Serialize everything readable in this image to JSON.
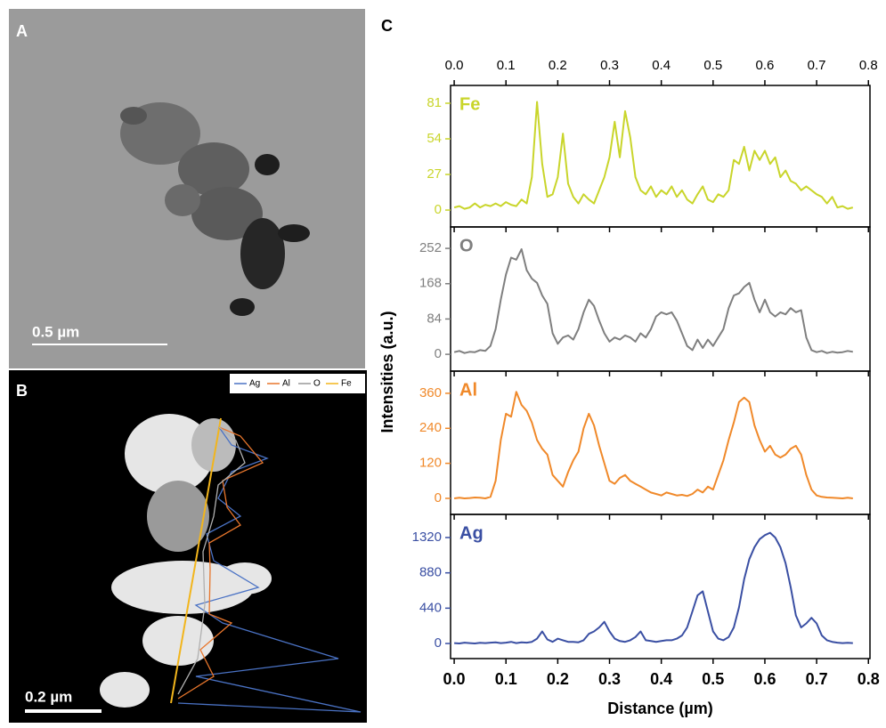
{
  "panel_labels": [
    "A",
    "B",
    "C"
  ],
  "scale_bars": [
    "0.5 µm",
    "0.2 µm"
  ],
  "y_label": "Intensities (a.u.)",
  "chart_data": [
    {
      "type": "line",
      "x": [
        0,
        0.01,
        0.02,
        0.03,
        0.04,
        0.05,
        0.06,
        0.07,
        0.08,
        0.09,
        0.1,
        0.11,
        0.12,
        0.13,
        0.14,
        0.15,
        0.16,
        0.17,
        0.18,
        0.19,
        0.2,
        0.21,
        0.22,
        0.23,
        0.24,
        0.25,
        0.26,
        0.27,
        0.28,
        0.29,
        0.3,
        0.31,
        0.32,
        0.33,
        0.34,
        0.35,
        0.36,
        0.37,
        0.38,
        0.39,
        0.4,
        0.41,
        0.42,
        0.43,
        0.44,
        0.45,
        0.46,
        0.47,
        0.48,
        0.49,
        0.5,
        0.51,
        0.52,
        0.53,
        0.54,
        0.55,
        0.56,
        0.57,
        0.58,
        0.59,
        0.6,
        0.61,
        0.62,
        0.63,
        0.64,
        0.65,
        0.66,
        0.67,
        0.68,
        0.69,
        0.7,
        0.71,
        0.72,
        0.73,
        0.74,
        0.75,
        0.76,
        0.77
      ],
      "series": [
        {
          "name": "Fe",
          "color": "#c9d52b",
          "values": [
            2,
            3,
            1,
            2,
            5,
            2,
            4,
            3,
            5,
            3,
            6,
            4,
            3,
            8,
            5,
            25,
            82,
            35,
            10,
            12,
            25,
            58,
            20,
            10,
            5,
            12,
            8,
            5,
            15,
            25,
            40,
            67,
            40,
            75,
            55,
            25,
            15,
            12,
            18,
            10,
            15,
            12,
            18,
            10,
            15,
            8,
            5,
            12,
            18,
            8,
            6,
            12,
            10,
            15,
            38,
            35,
            48,
            30,
            45,
            38,
            45,
            35,
            40,
            25,
            30,
            22,
            20,
            15,
            18,
            15,
            12,
            10,
            5,
            10,
            2,
            3,
            1,
            2
          ]
        }
      ],
      "xlim": [
        -0.007,
        0.803
      ],
      "xticks": [
        {
          "value": 0,
          "label": "0.0"
        },
        0.1,
        0.2,
        0.3,
        0.4,
        0.5,
        0.6,
        0.7,
        0.8
      ],
      "ylim": [
        -12.8,
        94.5
      ],
      "yticks": [
        0,
        27,
        54,
        81
      ]
    },
    {
      "type": "line",
      "x": [
        0,
        0.01,
        0.02,
        0.03,
        0.04,
        0.05,
        0.06,
        0.07,
        0.08,
        0.09,
        0.1,
        0.11,
        0.12,
        0.13,
        0.14,
        0.15,
        0.16,
        0.17,
        0.18,
        0.19,
        0.2,
        0.21,
        0.22,
        0.23,
        0.24,
        0.25,
        0.26,
        0.27,
        0.28,
        0.29,
        0.3,
        0.31,
        0.32,
        0.33,
        0.34,
        0.35,
        0.36,
        0.37,
        0.38,
        0.39,
        0.4,
        0.41,
        0.42,
        0.43,
        0.44,
        0.45,
        0.46,
        0.47,
        0.48,
        0.49,
        0.5,
        0.51,
        0.52,
        0.53,
        0.54,
        0.55,
        0.56,
        0.57,
        0.58,
        0.59,
        0.6,
        0.61,
        0.62,
        0.63,
        0.64,
        0.65,
        0.66,
        0.67,
        0.68,
        0.69,
        0.7,
        0.71,
        0.72,
        0.73,
        0.74,
        0.75,
        0.76,
        0.77
      ],
      "series": [
        {
          "name": "O",
          "color": "#7f7f7f",
          "values": [
            5,
            8,
            3,
            6,
            5,
            10,
            8,
            20,
            60,
            130,
            190,
            230,
            225,
            250,
            200,
            180,
            170,
            140,
            120,
            50,
            25,
            40,
            45,
            35,
            60,
            100,
            130,
            115,
            80,
            50,
            30,
            40,
            35,
            45,
            40,
            30,
            50,
            40,
            60,
            90,
            100,
            95,
            100,
            80,
            50,
            20,
            10,
            35,
            15,
            35,
            20,
            40,
            60,
            110,
            140,
            145,
            160,
            170,
            130,
            100,
            130,
            100,
            90,
            100,
            95,
            110,
            100,
            105,
            40,
            10,
            5,
            8,
            3,
            6,
            4,
            5,
            8,
            6
          ]
        }
      ],
      "xlim": [
        -0.007,
        0.803
      ],
      "xticks": [
        {
          "value": 0,
          "label": "0.0"
        },
        0.1,
        0.2,
        0.3,
        0.4,
        0.5,
        0.6,
        0.7,
        0.8
      ],
      "ylim": [
        -40,
        303
      ],
      "yticks": [
        0,
        84,
        168,
        252
      ]
    },
    {
      "type": "line",
      "x": [
        0,
        0.01,
        0.02,
        0.03,
        0.04,
        0.05,
        0.06,
        0.07,
        0.08,
        0.09,
        0.1,
        0.11,
        0.12,
        0.13,
        0.14,
        0.15,
        0.16,
        0.17,
        0.18,
        0.19,
        0.2,
        0.21,
        0.22,
        0.23,
        0.24,
        0.25,
        0.26,
        0.27,
        0.28,
        0.29,
        0.3,
        0.31,
        0.32,
        0.33,
        0.34,
        0.35,
        0.36,
        0.37,
        0.38,
        0.39,
        0.4,
        0.41,
        0.42,
        0.43,
        0.44,
        0.45,
        0.46,
        0.47,
        0.48,
        0.49,
        0.5,
        0.51,
        0.52,
        0.53,
        0.54,
        0.55,
        0.56,
        0.57,
        0.58,
        0.59,
        0.6,
        0.61,
        0.62,
        0.63,
        0.64,
        0.65,
        0.66,
        0.67,
        0.68,
        0.69,
        0.7,
        0.71,
        0.72,
        0.73,
        0.74,
        0.75,
        0.76,
        0.77
      ],
      "series": [
        {
          "name": "Al",
          "color": "#f0892a",
          "values": [
            0,
            2,
            0,
            1,
            3,
            2,
            0,
            5,
            60,
            200,
            290,
            280,
            365,
            320,
            300,
            260,
            200,
            170,
            150,
            80,
            60,
            40,
            90,
            130,
            160,
            240,
            290,
            250,
            180,
            120,
            60,
            50,
            70,
            80,
            60,
            50,
            40,
            30,
            20,
            15,
            10,
            20,
            15,
            10,
            12,
            8,
            15,
            30,
            20,
            40,
            30,
            80,
            130,
            200,
            260,
            330,
            345,
            330,
            250,
            200,
            160,
            180,
            150,
            140,
            150,
            170,
            180,
            150,
            80,
            30,
            10,
            5,
            3,
            2,
            1,
            0,
            2,
            0
          ]
        }
      ],
      "xlim": [
        -0.007,
        0.803
      ],
      "xticks": [
        {
          "value": 0,
          "label": "0.0"
        },
        0.1,
        0.2,
        0.3,
        0.4,
        0.5,
        0.6,
        0.7,
        0.8
      ],
      "ylim": [
        -55,
        436
      ],
      "yticks": [
        0,
        120,
        240,
        360
      ]
    },
    {
      "type": "line",
      "x": [
        0,
        0.01,
        0.02,
        0.03,
        0.04,
        0.05,
        0.06,
        0.07,
        0.08,
        0.09,
        0.1,
        0.11,
        0.12,
        0.13,
        0.14,
        0.15,
        0.16,
        0.17,
        0.18,
        0.19,
        0.2,
        0.21,
        0.22,
        0.23,
        0.24,
        0.25,
        0.26,
        0.27,
        0.28,
        0.29,
        0.3,
        0.31,
        0.32,
        0.33,
        0.34,
        0.35,
        0.36,
        0.37,
        0.38,
        0.39,
        0.4,
        0.41,
        0.42,
        0.43,
        0.44,
        0.45,
        0.46,
        0.47,
        0.48,
        0.49,
        0.5,
        0.51,
        0.52,
        0.53,
        0.54,
        0.55,
        0.56,
        0.57,
        0.58,
        0.59,
        0.6,
        0.61,
        0.62,
        0.63,
        0.64,
        0.65,
        0.66,
        0.67,
        0.68,
        0.69,
        0.7,
        0.71,
        0.72,
        0.73,
        0.74,
        0.75,
        0.76,
        0.77
      ],
      "series": [
        {
          "name": "Ag",
          "color": "#3a4fa3",
          "values": [
            5,
            0,
            10,
            5,
            0,
            8,
            5,
            10,
            15,
            5,
            10,
            20,
            5,
            15,
            10,
            20,
            60,
            150,
            50,
            20,
            60,
            40,
            20,
            20,
            15,
            40,
            120,
            150,
            200,
            270,
            150,
            60,
            30,
            20,
            40,
            80,
            150,
            40,
            30,
            20,
            30,
            40,
            40,
            60,
            100,
            200,
            400,
            600,
            650,
            400,
            150,
            60,
            40,
            80,
            200,
            450,
            800,
            1050,
            1200,
            1300,
            1350,
            1380,
            1320,
            1200,
            1000,
            700,
            350,
            200,
            250,
            320,
            250,
            100,
            40,
            20,
            10,
            5,
            8,
            5
          ]
        }
      ],
      "xlim": [
        -0.007,
        0.803
      ],
      "xticks": [
        {
          "value": 0,
          "label": "0.0"
        },
        0.1,
        0.2,
        0.3,
        0.4,
        0.5,
        0.6,
        0.7,
        0.8
      ],
      "ylim": [
        -188,
        1608
      ],
      "yticks": [
        0,
        440,
        880,
        1320
      ],
      "xlabel": "Distance (µm)"
    }
  ]
}
